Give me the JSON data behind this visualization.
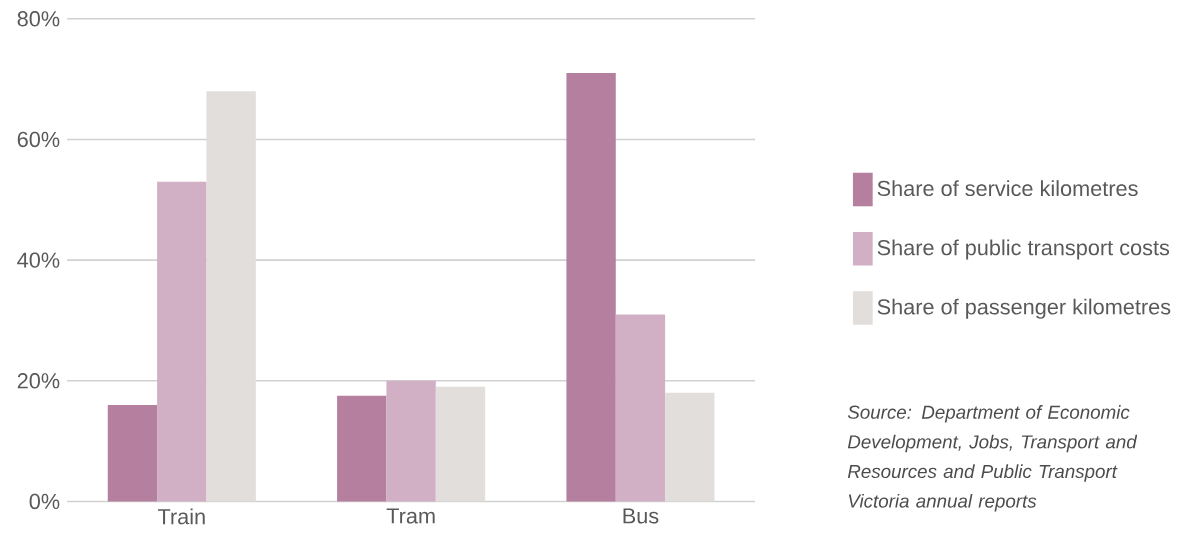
{
  "chart_data": {
    "type": "bar",
    "categories": [
      "Train",
      "Tram",
      "Bus"
    ],
    "series": [
      {
        "name": "Share of service kilometres",
        "color": "#b5809f",
        "values": [
          16,
          17.5,
          71
        ]
      },
      {
        "name": "Share of public transport costs",
        "color": "#d1afc5",
        "values": [
          53,
          20,
          31
        ]
      },
      {
        "name": "Share of passenger kilometres",
        "color": "#e1dedb",
        "values": [
          68,
          19,
          18
        ]
      }
    ],
    "ylim": [
      0,
      80
    ],
    "yticks": [
      {
        "value": 0,
        "label": "0%"
      },
      {
        "value": 20,
        "label": "20%"
      },
      {
        "value": 40,
        "label": "40%"
      },
      {
        "value": 60,
        "label": "60%"
      },
      {
        "value": 80,
        "label": "80%"
      }
    ],
    "grid": "y",
    "legend": "right",
    "annotations": [
      "Source: Department of Economic Development, Jobs, Transport and Resources and Public Transport Victoria annual reports"
    ]
  }
}
